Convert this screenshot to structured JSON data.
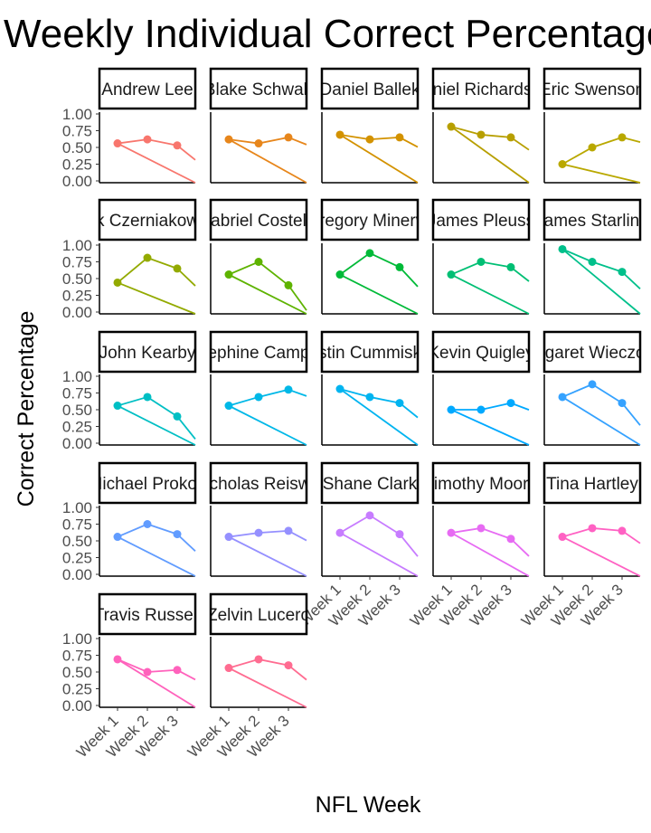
{
  "chart_data": {
    "type": "line",
    "title": "Weekly Individual Correct Percentage",
    "xlabel": "NFL Week",
    "ylabel": "Correct Percentage",
    "categories": [
      "Week 1",
      "Week 2",
      "Week 3"
    ],
    "y_ticks": [
      "0.00",
      "0.25",
      "0.50",
      "0.75",
      "1.00"
    ],
    "ylim": [
      0,
      1
    ],
    "facets": [
      {
        "name": "Andrew Lee",
        "color": "#F8766D",
        "values": [
          0.56,
          0.62,
          0.53
        ]
      },
      {
        "name": "Blake Schwab",
        "color": "#E7861B",
        "values": [
          0.62,
          0.56,
          0.65
        ]
      },
      {
        "name": "Daniel Ballek",
        "color": "#D39200",
        "values": [
          0.69,
          0.62,
          0.65
        ]
      },
      {
        "name": "Daniel Richardson",
        "color": "#B79F00",
        "values": [
          0.81,
          0.69,
          0.65
        ]
      },
      {
        "name": "Eric Swenson",
        "color": "#B9A800",
        "values": [
          0.25,
          0.5,
          0.65
        ]
      },
      {
        "name": "Erik Czerniakowski",
        "color": "#93AA00",
        "values": [
          0.44,
          0.81,
          0.65
        ]
      },
      {
        "name": "Gabriel Costello",
        "color": "#5EB300",
        "values": [
          0.56,
          0.75,
          0.4
        ]
      },
      {
        "name": "Gregory Minerva",
        "color": "#00BA38",
        "values": [
          0.56,
          0.88,
          0.67
        ]
      },
      {
        "name": "James Pleuss",
        "color": "#00BF74",
        "values": [
          0.56,
          0.75,
          0.67
        ]
      },
      {
        "name": "James Starling",
        "color": "#00C08B",
        "values": [
          0.94,
          0.75,
          0.6
        ]
      },
      {
        "name": "John Kearby",
        "color": "#00BFC4",
        "values": [
          0.56,
          0.69,
          0.4
        ]
      },
      {
        "name": "Josephine Campbell",
        "color": "#00B8E7",
        "values": [
          0.56,
          0.69,
          0.8
        ]
      },
      {
        "name": "Justin Cummiskey",
        "color": "#00B4F0",
        "values": [
          0.81,
          0.69,
          0.6
        ]
      },
      {
        "name": "Kevin Quigley",
        "color": "#00A9FF",
        "values": [
          0.5,
          0.5,
          0.6
        ]
      },
      {
        "name": "Margaret Wieczorek",
        "color": "#35A2FF",
        "values": [
          0.69,
          0.88,
          0.6
        ]
      },
      {
        "name": "Michael Prokop",
        "color": "#619CFF",
        "values": [
          0.56,
          0.75,
          0.6
        ]
      },
      {
        "name": "Nicholas Reiswig",
        "color": "#9590FF",
        "values": [
          0.56,
          0.62,
          0.65
        ]
      },
      {
        "name": "Shane Clark",
        "color": "#C77CFF",
        "values": [
          0.62,
          0.88,
          0.6
        ]
      },
      {
        "name": "Timothy Moore",
        "color": "#E76BF3",
        "values": [
          0.62,
          0.69,
          0.53
        ]
      },
      {
        "name": "Tina Hartley",
        "color": "#FF61C3",
        "values": [
          0.56,
          0.69,
          0.65
        ]
      },
      {
        "name": "Travis Russell",
        "color": "#FF62BC",
        "values": [
          0.69,
          0.5,
          0.53
        ]
      },
      {
        "name": "Zelvin Lucero",
        "color": "#FF6C91",
        "values": [
          0.56,
          0.69,
          0.6
        ]
      }
    ]
  }
}
